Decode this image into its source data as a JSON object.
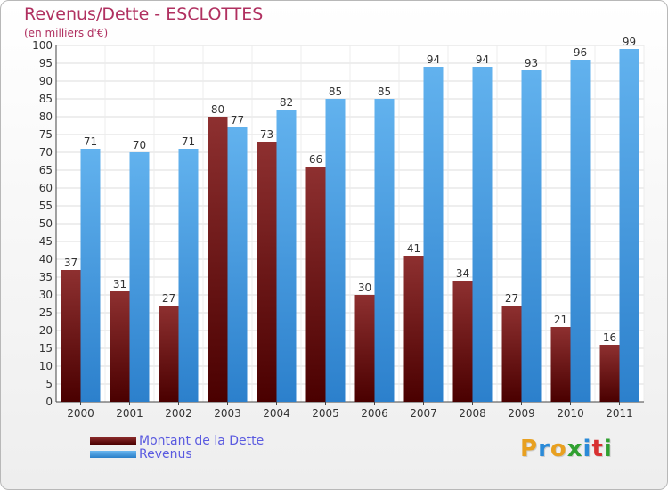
{
  "title": "Revenus/Dette - ESCLOTTES",
  "subtitle": "(en milliers d'€)",
  "logo": "Proxiti",
  "colors": {
    "dette": "#7a1a1a",
    "revenus": "#4aa3e8",
    "title": "#b03060",
    "legend_text": "#5a5ae0"
  },
  "chart_data": {
    "type": "bar",
    "title": "Revenus/Dette - ESCLOTTES",
    "ylabel": "(en milliers d'€)",
    "categories": [
      "2000",
      "2001",
      "2002",
      "2003",
      "2004",
      "2005",
      "2006",
      "2007",
      "2008",
      "2009",
      "2010",
      "2011"
    ],
    "series": [
      {
        "name": "Montant de la Dette",
        "values": [
          37,
          31,
          27,
          80,
          73,
          66,
          30,
          41,
          34,
          27,
          21,
          16
        ]
      },
      {
        "name": "Revenus",
        "values": [
          71,
          70,
          71,
          77,
          82,
          85,
          85,
          94,
          94,
          93,
          96,
          99
        ]
      }
    ],
    "ylim": [
      0,
      100
    ],
    "ytick_step": 5,
    "grid": true,
    "legend": "bottom-left"
  }
}
